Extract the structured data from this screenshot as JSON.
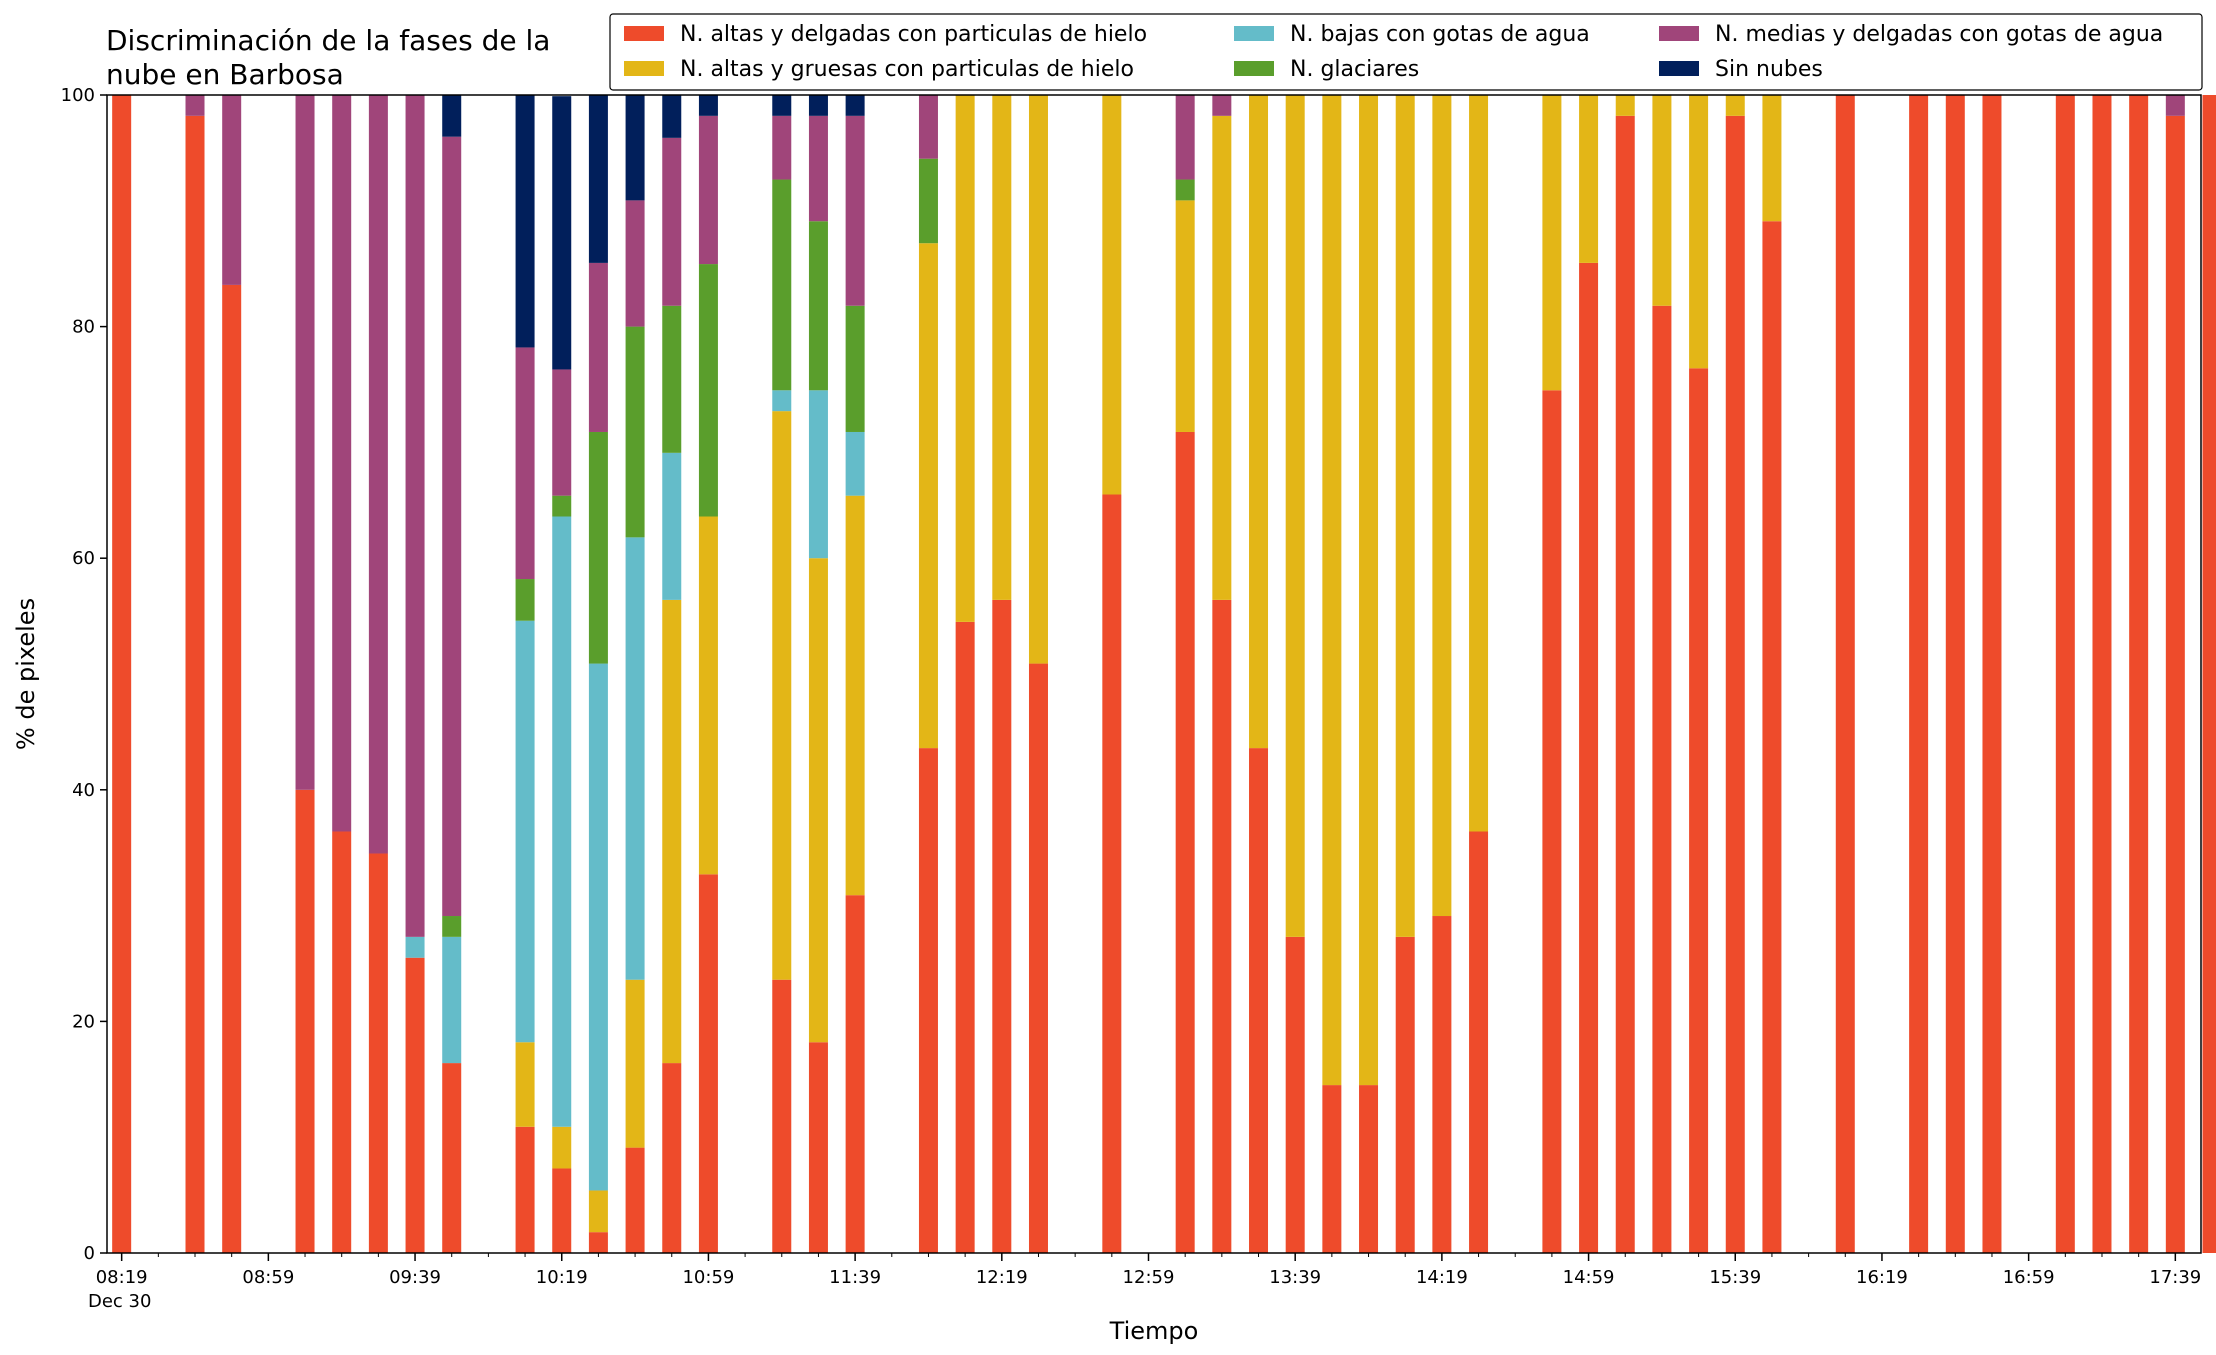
{
  "chart_data": {
    "type": "bar",
    "stacked": true,
    "title_lines": [
      "Discriminación de la fases de la",
      "nube en Barbosa"
    ],
    "xlabel": "Tiempo",
    "ylabel": "% de pixeles",
    "ylim": [
      0,
      100
    ],
    "yticks": [
      "0",
      "20",
      "40",
      "60",
      "80",
      "100"
    ],
    "x_tick_labels": [
      "08:19",
      "08:59",
      "09:39",
      "10:19",
      "10:59",
      "11:39",
      "12:19",
      "12:59",
      "13:39",
      "14:19",
      "14:59",
      "15:39",
      "16:19",
      "16:59",
      "17:39"
    ],
    "x_date_label": "Dec 30",
    "x_range_minutes": [
      "08:15",
      "17:46"
    ],
    "interval_minutes": 10,
    "grid": false,
    "legend_position": "top-right",
    "legend": [
      {
        "name": "N. altas y delgadas con particulas de hielo",
        "color": "#ee4b2b"
      },
      {
        "name": "N. altas y gruesas con particulas de hielo",
        "color": "#e3b617"
      },
      {
        "name": "N. bajas con gotas de agua",
        "color": "#64bcc9"
      },
      {
        "name": "N. glaciares",
        "color": "#5a9e2c"
      },
      {
        "name": "N. medias y delgadas con gotas de agua",
        "color": "#a0457a"
      },
      {
        "name": "Sin nubes",
        "color": "#011f5b"
      }
    ],
    "bars": [
      {
        "time": "08:19",
        "values": [
          100,
          0,
          0,
          0,
          0,
          0
        ]
      },
      {
        "time": "08:39",
        "values": [
          98.2,
          0,
          0,
          0,
          1.8,
          0
        ]
      },
      {
        "time": "08:49",
        "values": [
          83.6,
          0,
          0,
          0,
          16.4,
          0
        ]
      },
      {
        "time": "09:09",
        "values": [
          40,
          0,
          0,
          0,
          60,
          0
        ]
      },
      {
        "time": "09:19",
        "values": [
          36.4,
          0,
          0,
          0,
          63.6,
          0
        ]
      },
      {
        "time": "09:29",
        "values": [
          34.5,
          0,
          0,
          0,
          65.5,
          0
        ]
      },
      {
        "time": "09:39",
        "values": [
          25.5,
          0,
          1.8,
          0,
          72.7,
          0
        ]
      },
      {
        "time": "09:49",
        "values": [
          16.4,
          0,
          10.9,
          1.8,
          67.3,
          3.6
        ]
      },
      {
        "time": "10:09",
        "values": [
          10.9,
          7.3,
          36.4,
          3.6,
          20,
          21.8
        ]
      },
      {
        "time": "10:19",
        "values": [
          7.3,
          3.6,
          52.7,
          1.8,
          10.9,
          23.6
        ]
      },
      {
        "time": "10:29",
        "values": [
          1.8,
          3.6,
          45.5,
          20,
          14.6,
          14.5
        ]
      },
      {
        "time": "10:39",
        "values": [
          9.1,
          14.5,
          38.2,
          18.2,
          10.9,
          9.1
        ]
      },
      {
        "time": "10:49",
        "values": [
          16.4,
          40,
          12.7,
          12.7,
          14.5,
          3.7
        ]
      },
      {
        "time": "10:59",
        "values": [
          32.7,
          30.9,
          0,
          21.8,
          12.8,
          1.8
        ]
      },
      {
        "time": "11:19",
        "values": [
          23.6,
          49.1,
          1.8,
          18.2,
          5.5,
          1.8
        ]
      },
      {
        "time": "11:29",
        "values": [
          18.2,
          41.8,
          14.5,
          14.6,
          9.1,
          1.8
        ]
      },
      {
        "time": "11:39",
        "values": [
          30.9,
          34.5,
          5.5,
          10.9,
          16.4,
          1.8
        ]
      },
      {
        "time": "11:59",
        "values": [
          43.6,
          43.6,
          0,
          7.3,
          5.5,
          0
        ]
      },
      {
        "time": "12:09",
        "values": [
          54.5,
          45.5,
          0,
          0,
          0,
          0
        ]
      },
      {
        "time": "12:19",
        "values": [
          56.4,
          43.6,
          0,
          0,
          0,
          0
        ]
      },
      {
        "time": "12:29",
        "values": [
          50.9,
          49.1,
          0,
          0,
          0,
          0
        ]
      },
      {
        "time": "12:49",
        "values": [
          65.5,
          34.5,
          0,
          0,
          0,
          0
        ]
      },
      {
        "time": "13:09",
        "values": [
          70.9,
          20,
          0,
          1.8,
          7.3,
          0
        ]
      },
      {
        "time": "13:19",
        "values": [
          56.4,
          41.8,
          0,
          0,
          1.8,
          0
        ]
      },
      {
        "time": "13:29",
        "values": [
          43.6,
          56.4,
          0,
          0,
          0,
          0
        ]
      },
      {
        "time": "13:39",
        "values": [
          27.3,
          72.7,
          0,
          0,
          0,
          0
        ]
      },
      {
        "time": "13:49",
        "values": [
          14.5,
          85.5,
          0,
          0,
          0,
          0
        ]
      },
      {
        "time": "13:59",
        "values": [
          14.5,
          85.5,
          0,
          0,
          0,
          0
        ]
      },
      {
        "time": "14:09",
        "values": [
          27.3,
          72.7,
          0,
          0,
          0,
          0
        ]
      },
      {
        "time": "14:19",
        "values": [
          29.1,
          70.9,
          0,
          0,
          0,
          0
        ]
      },
      {
        "time": "14:29",
        "values": [
          36.4,
          63.6,
          0,
          0,
          0,
          0
        ]
      },
      {
        "time": "14:49",
        "values": [
          74.5,
          25.5,
          0,
          0,
          0,
          0
        ]
      },
      {
        "time": "14:59",
        "values": [
          85.5,
          14.5,
          0,
          0,
          0,
          0
        ]
      },
      {
        "time": "15:09",
        "values": [
          98.2,
          1.8,
          0,
          0,
          0,
          0
        ]
      },
      {
        "time": "15:19",
        "values": [
          81.8,
          18.2,
          0,
          0,
          0,
          0
        ]
      },
      {
        "time": "15:29",
        "values": [
          76.4,
          23.6,
          0,
          0,
          0,
          0
        ]
      },
      {
        "time": "15:39",
        "values": [
          98.2,
          1.8,
          0,
          0,
          0,
          0
        ]
      },
      {
        "time": "15:49",
        "values": [
          89.1,
          10.9,
          0,
          0,
          0,
          0
        ]
      },
      {
        "time": "16:09",
        "values": [
          100,
          0,
          0,
          0,
          0,
          0
        ]
      },
      {
        "time": "16:29",
        "values": [
          100,
          0,
          0,
          0,
          0,
          0
        ]
      },
      {
        "time": "16:39",
        "values": [
          100,
          0,
          0,
          0,
          0,
          0
        ]
      },
      {
        "time": "16:49",
        "values": [
          100,
          0,
          0,
          0,
          0,
          0
        ]
      },
      {
        "time": "17:09",
        "values": [
          100,
          0,
          0,
          0,
          0,
          0
        ]
      },
      {
        "time": "17:19",
        "values": [
          100,
          0,
          0,
          0,
          0,
          0
        ]
      },
      {
        "time": "17:29",
        "values": [
          100,
          0,
          0,
          0,
          0,
          0
        ]
      },
      {
        "time": "17:39",
        "values": [
          98.2,
          0,
          0,
          0,
          1.8,
          0
        ]
      },
      {
        "time": "17:49",
        "values": [
          100,
          0,
          0,
          0,
          0,
          0
        ]
      }
    ]
  }
}
